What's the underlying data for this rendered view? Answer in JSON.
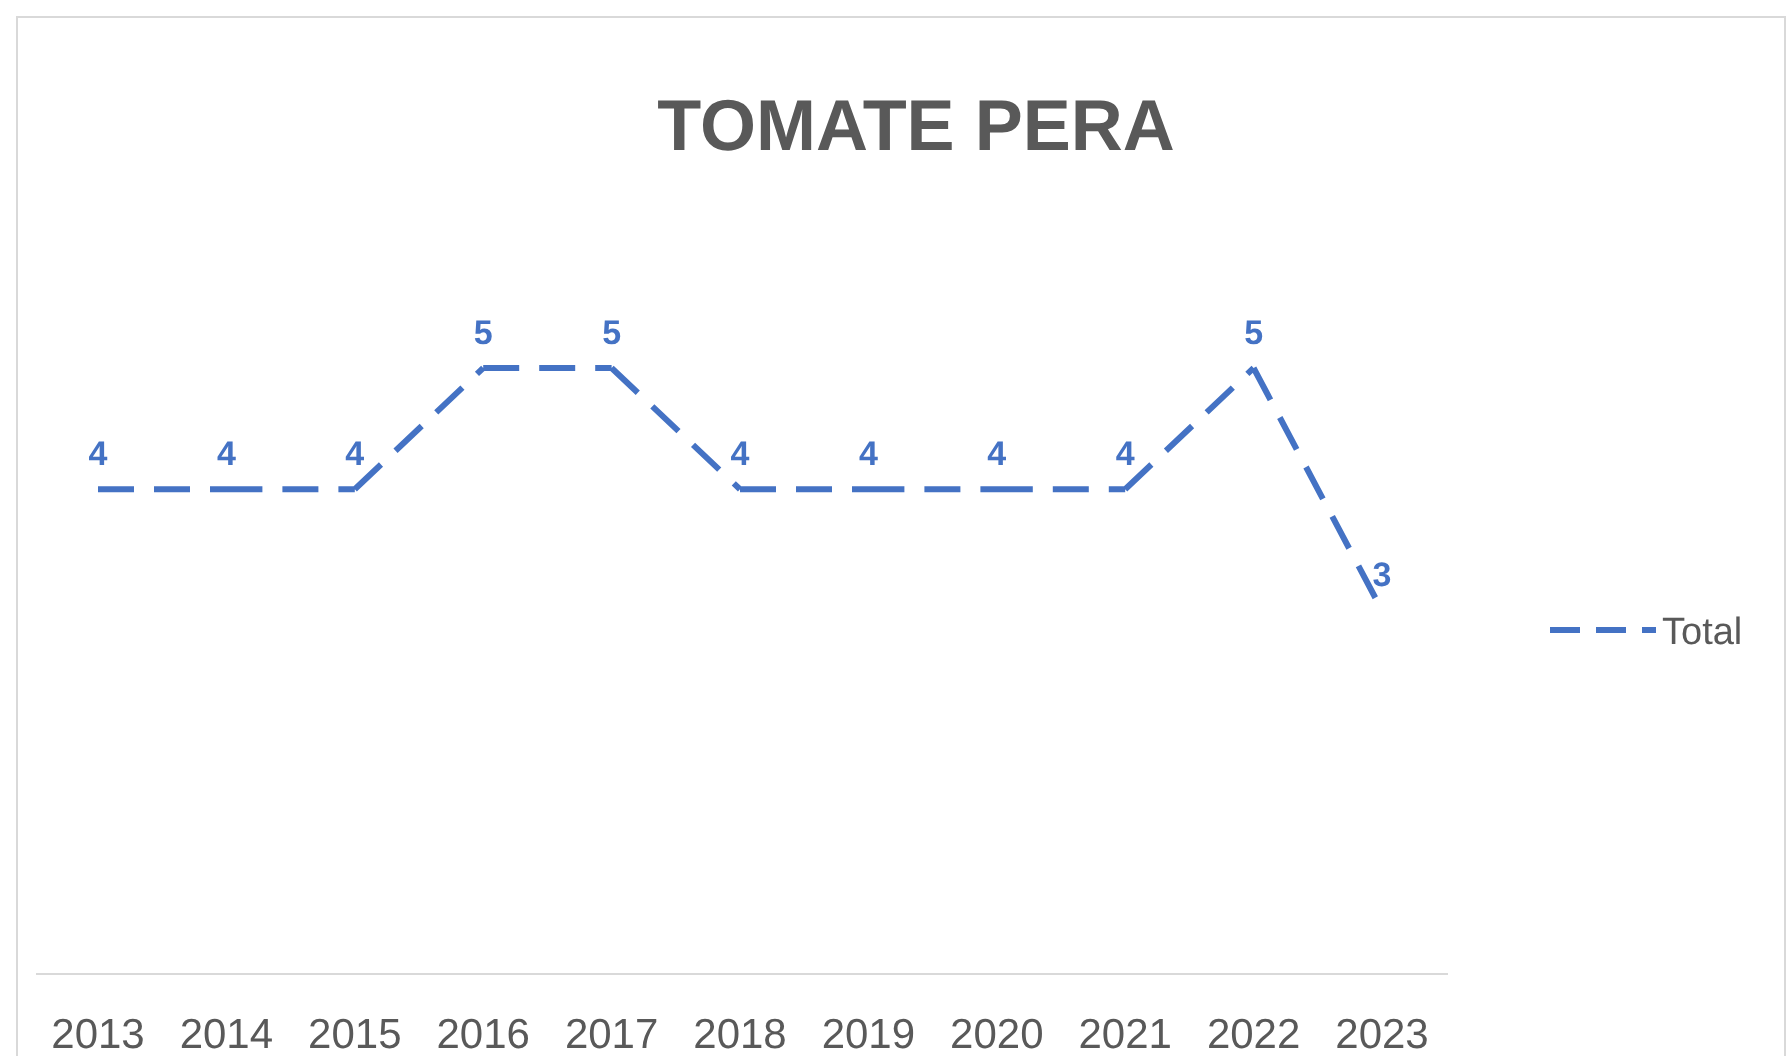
{
  "chart_data": {
    "type": "line",
    "title": "TOMATE PERA",
    "categories": [
      "2013",
      "2014",
      "2015",
      "2016",
      "2017",
      "2018",
      "2019",
      "2020",
      "2021",
      "2022",
      "2023"
    ],
    "series": [
      {
        "name": "Total",
        "color": "#4472c4",
        "values": [
          4,
          4,
          4,
          5,
          5,
          4,
          4,
          4,
          4,
          5,
          3
        ]
      }
    ],
    "data_labels": true,
    "legend": "right",
    "line_style": "dashed",
    "marker": "none"
  }
}
